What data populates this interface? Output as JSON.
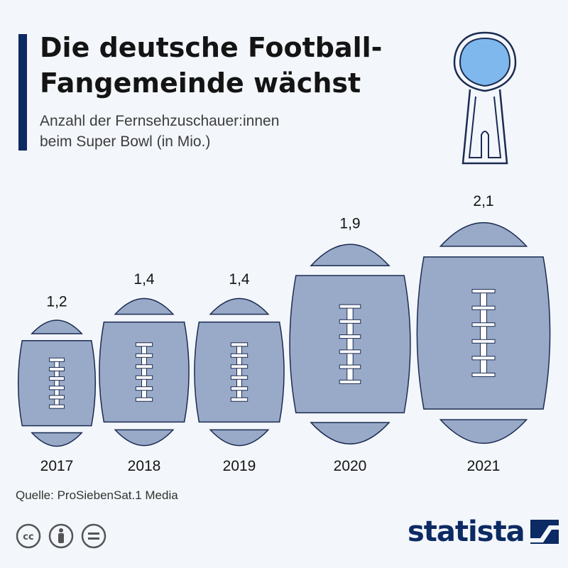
{
  "header": {
    "title_line1": "Die deutsche Football-",
    "title_line2": "Fangemeinde wächst",
    "subtitle_line1": "Anzahl der Fernsehzuschauer:innen",
    "subtitle_line2": "beim Super Bowl (in Mio.)"
  },
  "colors": {
    "accent": "#0c2a63",
    "ball_fill": "#98aac8",
    "ball_stroke": "#1b2b52",
    "trophy_ball": "#7fb8ec",
    "background": "#f3f6fa"
  },
  "chart_data": {
    "type": "bar",
    "categories": [
      "2017",
      "2018",
      "2019",
      "2020",
      "2021"
    ],
    "values": [
      1.2,
      1.4,
      1.4,
      1.9,
      2.1
    ],
    "value_labels": [
      "1,2",
      "1,4",
      "1,4",
      "1,9",
      "2,1"
    ],
    "title": "Die deutsche Football-Fangemeinde wächst",
    "ylabel": "Anzahl der Fernsehzuschauer:innen beim Super Bowl (in Mio.)",
    "xlabel": ""
  },
  "footer": {
    "source": "Quelle: ProSiebenSat.1 Media",
    "brand": "statista",
    "cc_icons": [
      "cc-icon",
      "by-icon",
      "nd-icon"
    ]
  }
}
